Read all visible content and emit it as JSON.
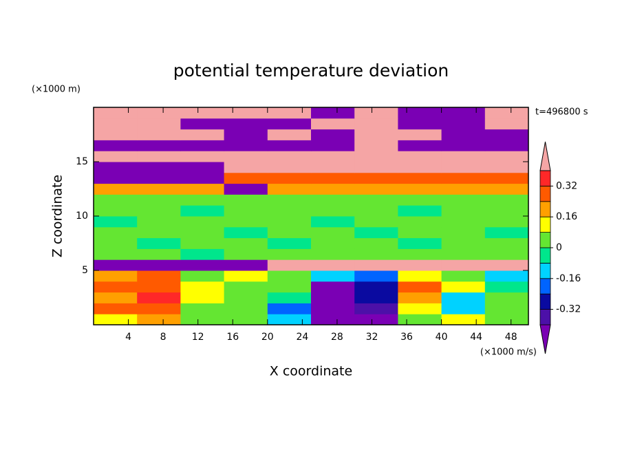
{
  "chart_data": {
    "type": "contour",
    "title": "potential temperature deviation",
    "x_label": "X coordinate",
    "y_label": "Z coordinate",
    "x_unit": "(×1000 m/s)",
    "y_unit": "(×1000 m)",
    "time_label": "t=496800 s",
    "xlim": [
      0,
      50
    ],
    "ylim": [
      0,
      20
    ],
    "xticks": [
      4,
      8,
      12,
      16,
      20,
      24,
      28,
      32,
      36,
      40,
      44,
      48
    ],
    "yticks": [
      5,
      10,
      15
    ],
    "levels": [
      -0.4,
      -0.32,
      -0.24,
      -0.16,
      -0.08,
      0,
      0.08,
      0.16,
      0.24,
      0.32,
      0.4
    ],
    "colorbar_ticks": [
      -0.32,
      -0.16,
      0,
      0.16,
      0.32
    ],
    "colors": [
      "#7a00b4",
      "#4c10a8",
      "#0a0aa0",
      "#0064ff",
      "#00d2ff",
      "#00e68c",
      "#64e632",
      "#ffff00",
      "#ffa000",
      "#ff5a00",
      "#ff2828",
      "#f5a5a5"
    ],
    "field": {
      "x": [
        2.5,
        7.5,
        12.5,
        17.5,
        22.5,
        27.5,
        32.5,
        37.5,
        42.5,
        47.5
      ],
      "z": [
        0.5,
        1.5,
        2.5,
        3.5,
        4.5,
        5.5,
        6.5,
        7.5,
        8.5,
        9.5,
        10.5,
        11.5,
        12.5,
        13.5,
        14.5,
        15.5,
        16.5,
        17.5,
        18.5,
        19.5
      ],
      "values": [
        [
          0.1,
          0.2,
          0,
          0.05,
          -0.1,
          -0.45,
          -0.45,
          0.05,
          0.1,
          0.05
        ],
        [
          0.25,
          0.3,
          0.05,
          0,
          -0.2,
          -0.45,
          -0.4,
          0.1,
          -0.1,
          0.05
        ],
        [
          0.2,
          0.35,
          0.1,
          0,
          -0.05,
          -0.45,
          -0.3,
          0.2,
          -0.1,
          0
        ],
        [
          0.3,
          0.3,
          0.1,
          0.05,
          0,
          -0.45,
          -0.25,
          0.25,
          0.1,
          -0.05
        ],
        [
          0.2,
          0.25,
          0.05,
          0.1,
          0,
          -0.15,
          -0.2,
          0.1,
          0.05,
          -0.1
        ],
        [
          -0.45,
          -0.45,
          -0.45,
          -0.45,
          0.45,
          0.45,
          0.45,
          0.45,
          0.45,
          0.45
        ],
        [
          0.03,
          0.03,
          -0.02,
          0.03,
          0.03,
          0.03,
          0.03,
          0.03,
          0.03,
          0.03
        ],
        [
          0.03,
          -0.02,
          0.03,
          0.03,
          -0.02,
          0.03,
          0.03,
          -0.02,
          0.03,
          0.03
        ],
        [
          0.03,
          0.03,
          0.03,
          -0.02,
          0.03,
          0.03,
          -0.02,
          0.03,
          0.03,
          -0.02
        ],
        [
          -0.02,
          0.03,
          0.03,
          0.03,
          0.03,
          -0.02,
          0.03,
          0.03,
          0.03,
          0.03
        ],
        [
          0.03,
          0.03,
          -0.02,
          0.03,
          0.03,
          0.03,
          0.03,
          -0.02,
          0.03,
          0.03
        ],
        [
          0.05,
          0.05,
          0.05,
          0.05,
          0.05,
          0.05,
          0.05,
          0.05,
          0.05,
          0.05
        ],
        [
          0.18,
          0.18,
          0.18,
          -0.45,
          0.18,
          0.18,
          0.18,
          0.18,
          0.18,
          0.18
        ],
        [
          -0.45,
          -0.45,
          -0.45,
          0.28,
          0.28,
          0.28,
          0.28,
          0.28,
          0.28,
          0.28
        ],
        [
          -0.45,
          -0.45,
          -0.45,
          0.45,
          0.45,
          0.45,
          0.45,
          0.45,
          0.45,
          0.45
        ],
        [
          0.45,
          0.45,
          0.45,
          0.45,
          0.45,
          0.45,
          0.45,
          0.45,
          0.45,
          0.45
        ],
        [
          -0.45,
          -0.45,
          -0.45,
          -0.45,
          -0.45,
          -0.45,
          0.45,
          -0.45,
          -0.45,
          -0.45
        ],
        [
          0.45,
          0.45,
          0.45,
          -0.45,
          0.45,
          -0.45,
          0.45,
          0.45,
          -0.45,
          -0.45
        ],
        [
          0.45,
          0.45,
          -0.45,
          -0.45,
          -0.45,
          0.45,
          0.45,
          -0.45,
          -0.45,
          0.45
        ],
        [
          0.45,
          0.45,
          0.45,
          0.45,
          0.45,
          -0.45,
          0.45,
          -0.45,
          -0.45,
          0.45
        ]
      ]
    }
  }
}
